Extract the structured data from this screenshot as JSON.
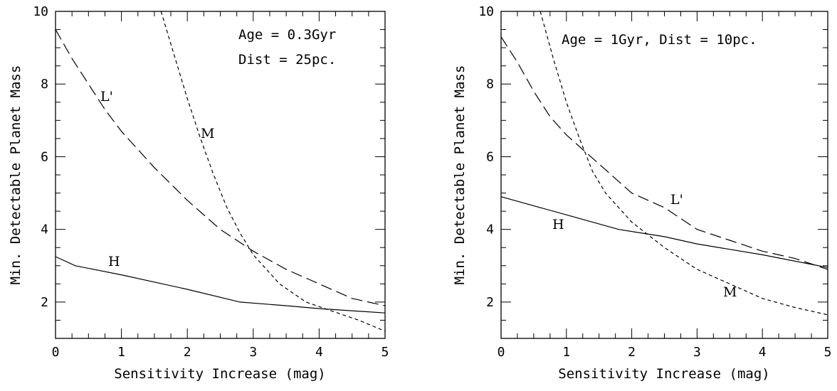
{
  "chart_data": [
    {
      "type": "line",
      "xlabel": "Sensitivity Increase (mag)",
      "ylabel": "Min. Detectable Planet Mass",
      "xlim": [
        0,
        5
      ],
      "ylim": [
        1,
        10
      ],
      "x_ticks": [
        0,
        1,
        2,
        3,
        4,
        5
      ],
      "y_ticks": [
        2,
        4,
        6,
        8,
        10
      ],
      "annotations": [
        "Age = 0.3Gyr",
        "Dist = 25pc."
      ],
      "series": [
        {
          "name": "H",
          "style": "solid",
          "x": [
            0,
            0.3,
            1,
            2,
            2.8,
            3.5,
            4,
            5
          ],
          "y": [
            3.25,
            3.0,
            2.75,
            2.35,
            2.0,
            1.9,
            1.82,
            1.7
          ]
        },
        {
          "name": "L'",
          "style": "long-dash",
          "x": [
            0,
            0.25,
            0.5,
            0.75,
            1,
            1.5,
            2,
            2.5,
            3,
            3.5,
            4,
            4.5,
            5
          ],
          "y": [
            9.5,
            8.7,
            8.0,
            7.3,
            6.7,
            5.7,
            4.8,
            4.0,
            3.4,
            2.9,
            2.5,
            2.1,
            1.9
          ]
        },
        {
          "name": "M",
          "style": "short-dash",
          "x": [
            1.6,
            1.8,
            2.0,
            2.2,
            2.4,
            2.6,
            2.8,
            3.0,
            3.4,
            3.8,
            4.2,
            4.6,
            5
          ],
          "y": [
            10,
            8.8,
            7.6,
            6.5,
            5.5,
            4.6,
            3.9,
            3.3,
            2.5,
            2.0,
            1.75,
            1.5,
            1.2
          ]
        }
      ]
    },
    {
      "type": "line",
      "xlabel": "Sensitivity Increase (mag)",
      "ylabel": "Min. Detectable Planet Mass",
      "xlim": [
        0,
        5
      ],
      "ylim": [
        1,
        10
      ],
      "x_ticks": [
        0,
        1,
        2,
        3,
        4,
        5
      ],
      "y_ticks": [
        2,
        4,
        6,
        8,
        10
      ],
      "annotations": [
        "Age = 1Gyr, Dist = 10pc."
      ],
      "series": [
        {
          "name": "H",
          "style": "solid",
          "x": [
            0,
            1,
            1.8,
            2.5,
            3,
            4,
            5
          ],
          "y": [
            4.9,
            4.4,
            4.0,
            3.8,
            3.6,
            3.3,
            2.95
          ]
        },
        {
          "name": "L'",
          "style": "long-dash",
          "x": [
            0,
            0.25,
            0.5,
            0.75,
            1,
            1.5,
            2,
            2.5,
            3,
            3.5,
            4,
            4.5,
            5
          ],
          "y": [
            9.3,
            8.6,
            7.8,
            7.1,
            6.6,
            5.8,
            5.0,
            4.6,
            4.0,
            3.7,
            3.4,
            3.2,
            2.9
          ]
        },
        {
          "name": "M",
          "style": "short-dash",
          "x": [
            0.6,
            0.8,
            1.0,
            1.2,
            1.4,
            1.6,
            1.8,
            2.0,
            2.5,
            3.0,
            3.5,
            4.0,
            4.5,
            5
          ],
          "y": [
            10,
            8.7,
            7.5,
            6.5,
            5.6,
            5.0,
            4.6,
            4.2,
            3.5,
            2.9,
            2.5,
            2.1,
            1.85,
            1.65
          ]
        }
      ]
    }
  ]
}
